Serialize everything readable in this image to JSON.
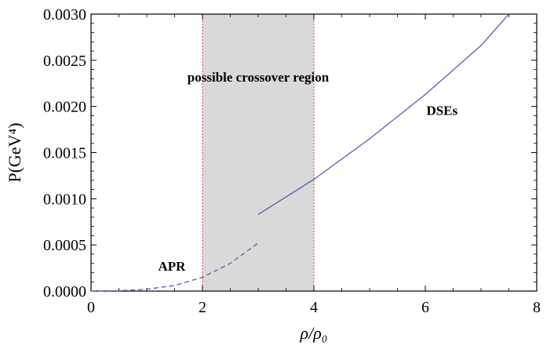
{
  "chart_data": {
    "type": "line",
    "xlabel": "ρ/ρ₀",
    "ylabel": "P(GeV⁴)",
    "xlim": [
      0,
      8
    ],
    "ylim": [
      0,
      0.003
    ],
    "x_ticks": [
      "0",
      "2",
      "4",
      "6",
      "8"
    ],
    "y_ticks": [
      "0.0000",
      "0.0005",
      "0.0010",
      "0.0015",
      "0.0020",
      "0.0025",
      "0.0030"
    ],
    "shaded_region": {
      "x_range": [
        2,
        4
      ],
      "label": "possible crossover region",
      "fill_color": "#d9d9d9",
      "edge_color": "#e04040"
    },
    "series": [
      {
        "name": "APR",
        "style": "dashed",
        "color": "#5a5aa8",
        "x": [
          0,
          0.5,
          1,
          1.5,
          2,
          2.5,
          3
        ],
        "y": [
          0,
          3e-06,
          2e-05,
          6e-05,
          0.00015,
          0.0003,
          0.00052
        ]
      },
      {
        "name": "DSEs",
        "style": "solid",
        "color": "#5a5aa8",
        "x": [
          3,
          4,
          5,
          6,
          7,
          7.5
        ],
        "y": [
          0.00083,
          0.00121,
          0.00165,
          0.00213,
          0.00266,
          0.003
        ]
      }
    ],
    "annotations": [
      {
        "text": "possible crossover region",
        "x": 3.0,
        "y": 0.00227
      },
      {
        "text": "DSEs",
        "x": 6.3,
        "y": 0.00191
      },
      {
        "text": "APR",
        "x": 1.45,
        "y": 0.00022
      }
    ]
  }
}
